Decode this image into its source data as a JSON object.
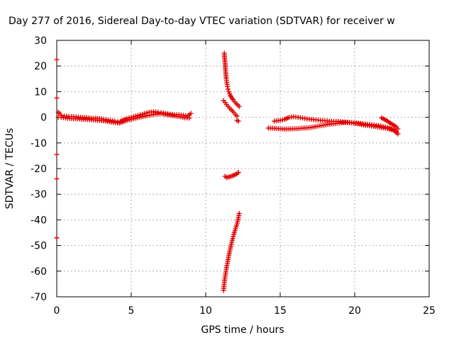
{
  "chart_data": {
    "type": "scatter",
    "title": "Day 277 of 2016, Sidereal Day-to-day VTEC variation (SDTVAR) for receiver w",
    "xlabel": "GPS time / hours",
    "ylabel": "SDTVAR / TECUs",
    "xlim": [
      0,
      25
    ],
    "ylim": [
      -70,
      30
    ],
    "xticks": [
      "0",
      "5",
      "10",
      "15",
      "20",
      "25"
    ],
    "yticks": [
      "30",
      "20",
      "10",
      "0",
      "-10",
      "-20",
      "-30",
      "-40",
      "-50",
      "-60",
      "-70"
    ],
    "grid": true,
    "legend": "none",
    "marker": "plus",
    "color": "#e00000",
    "series": [
      {
        "x": [
          0.0,
          0.0,
          0.0,
          0.0,
          0.0
        ],
        "y": [
          22.5,
          7.5,
          -14.5,
          -24.0,
          -47.0
        ]
      },
      {
        "x": [
          0.1,
          0.2,
          0.3,
          0.5,
          0.8,
          1.0,
          1.3,
          1.6,
          2.0,
          2.3,
          2.6,
          3.0,
          3.3,
          3.6,
          3.9,
          4.1,
          4.3,
          4.5,
          4.7,
          5.0,
          5.3,
          5.6,
          5.9,
          6.2,
          6.5,
          6.8,
          7.0,
          7.3,
          7.6,
          7.9,
          8.2,
          8.5,
          8.8,
          9.0
        ],
        "y": [
          2.0,
          1.5,
          0.8,
          0.5,
          0.4,
          0.3,
          0.2,
          0.0,
          -0.1,
          -0.3,
          -0.4,
          -0.6,
          -0.9,
          -1.2,
          -1.5,
          -1.7,
          -1.5,
          -1.0,
          -0.5,
          0.0,
          0.5,
          1.0,
          1.5,
          2.0,
          2.2,
          2.0,
          1.8,
          1.5,
          1.3,
          1.0,
          1.0,
          0.8,
          0.5,
          1.5
        ]
      },
      {
        "x": [
          0.1,
          0.3,
          0.6,
          1.0,
          1.4,
          1.8,
          2.2,
          2.6,
          3.0,
          3.4,
          3.8,
          4.2,
          4.6,
          5.0,
          5.4,
          5.8,
          6.2,
          6.6,
          7.0,
          7.4,
          7.8,
          8.2,
          8.6,
          8.9
        ],
        "y": [
          0.0,
          0.0,
          -0.3,
          -0.5,
          -0.6,
          -0.8,
          -0.9,
          -1.1,
          -1.3,
          -1.6,
          -2.0,
          -2.2,
          -1.4,
          -0.8,
          -0.2,
          0.3,
          0.8,
          1.2,
          1.4,
          1.0,
          0.6,
          0.3,
          -0.2,
          -0.3
        ]
      },
      {
        "x": [
          11.25,
          11.27,
          11.3,
          11.32,
          11.35,
          11.38,
          11.42,
          11.46,
          11.5,
          11.55,
          11.6,
          11.65,
          11.7,
          11.78,
          11.85,
          11.95,
          12.05,
          12.15,
          12.25
        ],
        "y": [
          25.0,
          23.0,
          21.0,
          19.0,
          17.0,
          15.0,
          13.5,
          12.0,
          11.0,
          10.0,
          9.2,
          8.5,
          8.0,
          7.3,
          6.8,
          6.0,
          5.3,
          4.8,
          4.2
        ]
      },
      {
        "x": [
          11.2,
          11.3,
          11.4,
          11.5,
          11.6,
          11.7,
          11.8,
          11.9,
          12.0,
          12.1
        ],
        "y": [
          6.5,
          5.8,
          5.0,
          4.3,
          3.6,
          3.0,
          2.4,
          1.8,
          1.0,
          0.5
        ]
      },
      {
        "x": [
          12.1,
          12.2
        ],
        "y": [
          -1.2,
          -1.5
        ]
      },
      {
        "x": [
          11.3,
          11.4,
          11.5,
          11.6,
          11.7,
          11.8,
          11.9,
          12.0,
          12.1,
          12.2
        ],
        "y": [
          -23.0,
          -23.5,
          -23.3,
          -23.2,
          -23.0,
          -22.8,
          -22.6,
          -22.3,
          -22.0,
          -21.5
        ]
      },
      {
        "x": [
          11.2,
          11.22,
          11.25,
          11.28,
          11.32,
          11.36,
          11.4,
          11.45,
          11.5,
          11.55,
          11.6,
          11.66,
          11.72,
          11.78,
          11.85,
          11.92,
          12.0,
          12.08,
          12.15,
          12.2,
          12.25
        ],
        "y": [
          -67.5,
          -66.0,
          -64.5,
          -63.0,
          -61.5,
          -60.0,
          -58.5,
          -57.0,
          -55.5,
          -54.0,
          -52.5,
          -51.0,
          -49.5,
          -48.0,
          -46.5,
          -45.0,
          -43.5,
          -42.0,
          -40.5,
          -39.0,
          -37.5
        ]
      },
      {
        "x": [
          14.6,
          15.0,
          15.3,
          15.6,
          15.9,
          16.2,
          16.5,
          16.8,
          17.1,
          17.4,
          17.7,
          18.0,
          18.3,
          18.6,
          18.9,
          19.2,
          19.5,
          19.8,
          20.1,
          20.4,
          20.7,
          21.0,
          21.3,
          21.6,
          21.9,
          22.2,
          22.5,
          22.8
        ],
        "y": [
          -1.5,
          -1.2,
          -0.8,
          0.0,
          0.2,
          0.0,
          -0.3,
          -0.6,
          -0.8,
          -1.0,
          -1.2,
          -1.3,
          -1.5,
          -1.6,
          -1.6,
          -1.8,
          -1.9,
          -2.0,
          -2.2,
          -2.4,
          -2.6,
          -2.8,
          -3.0,
          -3.2,
          -3.6,
          -4.0,
          -4.6,
          -5.5
        ]
      },
      {
        "x": [
          14.2,
          14.6,
          15.0,
          15.4,
          15.8,
          16.2,
          16.6,
          17.0,
          17.4,
          17.8,
          18.2,
          18.6,
          19.0,
          19.4,
          19.8,
          20.2,
          20.6,
          21.0,
          21.4,
          21.8,
          22.2,
          22.6,
          22.9
        ],
        "y": [
          -4.2,
          -4.3,
          -4.5,
          -4.6,
          -4.5,
          -4.4,
          -4.2,
          -4.0,
          -3.6,
          -3.2,
          -2.8,
          -2.5,
          -2.2,
          -2.0,
          -2.2,
          -2.5,
          -3.0,
          -3.3,
          -3.6,
          -4.0,
          -4.4,
          -5.0,
          -6.5
        ]
      },
      {
        "x": [
          21.8,
          22.0,
          22.2,
          22.4,
          22.6,
          22.8,
          22.9
        ],
        "y": [
          -0.2,
          -0.8,
          -1.5,
          -2.3,
          -3.0,
          -3.8,
          -4.5
        ]
      }
    ]
  }
}
